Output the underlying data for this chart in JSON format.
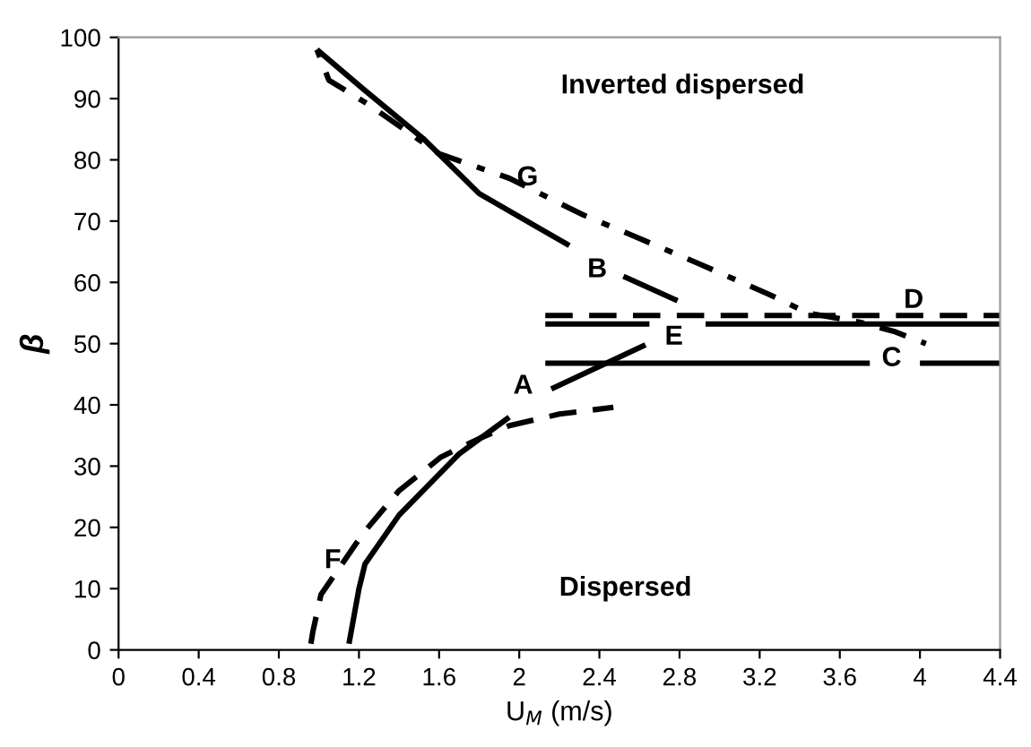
{
  "chart_data": {
    "type": "line",
    "xlabel": "U$_{M}$ (m/s)",
    "ylabel": "β",
    "xlim": [
      0,
      4.4
    ],
    "xticks": [
      0,
      0.4,
      0.8,
      1.2,
      1.6,
      2,
      2.4,
      2.8,
      3.2,
      3.6,
      4,
      4.4
    ],
    "ylim": [
      0,
      100
    ],
    "yticks": [
      0,
      10,
      20,
      30,
      40,
      50,
      60,
      70,
      80,
      90,
      100
    ],
    "grid": false,
    "series": [
      {
        "color": "#000000",
        "line_style": "dashed",
        "x": [
          0.96,
          0.97,
          1.01,
          1.22,
          1.4,
          1.61,
          1.8,
          1.95,
          2.2,
          2.47
        ],
        "values": [
          1,
          3,
          9,
          19,
          26,
          31.5,
          34.5,
          36.6,
          38.5,
          39.6
        ]
      },
      {
        "color": "#000000",
        "line_style": "solid",
        "x": [
          1.15,
          1.2,
          1.23,
          1.4,
          1.7,
          1.95,
          2.05,
          2.16,
          2.63
        ],
        "values": [
          1,
          10,
          14,
          22,
          32,
          38,
          null,
          42.6,
          49.8
        ]
      },
      {
        "color": "#000000",
        "line_style": "solid",
        "x": [
          0.99,
          1.22,
          1.52,
          1.8,
          2.25,
          2.4,
          2.52,
          2.79
        ],
        "values": [
          98,
          91.6,
          83.5,
          74.5,
          66,
          null,
          61,
          57
        ]
      },
      {
        "color": "#000000",
        "line_style": "dotted",
        "x": [
          0.99,
          1.05,
          1.25,
          1.6,
          1.95,
          2.32,
          2.54,
          2.9,
          3.25,
          3.44,
          3.7,
          3.87,
          4.03
        ],
        "values": [
          98,
          93,
          89,
          81,
          77,
          71,
          68,
          63,
          58,
          55,
          53.5,
          52,
          50
        ]
      },
      {
        "color": "#000000",
        "line_style": "dashed",
        "x": [
          2.13,
          4.4
        ],
        "values": [
          54.6,
          54.6
        ]
      },
      {
        "color": "#000000",
        "line_style": "solid",
        "x": [
          2.13,
          2.65,
          2.79,
          2.93,
          4.4
        ],
        "values": [
          53.2,
          53.2,
          null,
          53.2,
          53.2
        ]
      },
      {
        "color": "#000000",
        "line_style": "solid",
        "x": [
          2.13,
          3.75,
          3.87,
          4.0,
          4.4
        ],
        "values": [
          46.8,
          46.8,
          null,
          46.8,
          46.8
        ]
      }
    ],
    "annotations": [
      "Inverted dispersed",
      "Dispersed",
      "G",
      "B",
      "D",
      "E",
      "C",
      "A",
      "F"
    ]
  }
}
